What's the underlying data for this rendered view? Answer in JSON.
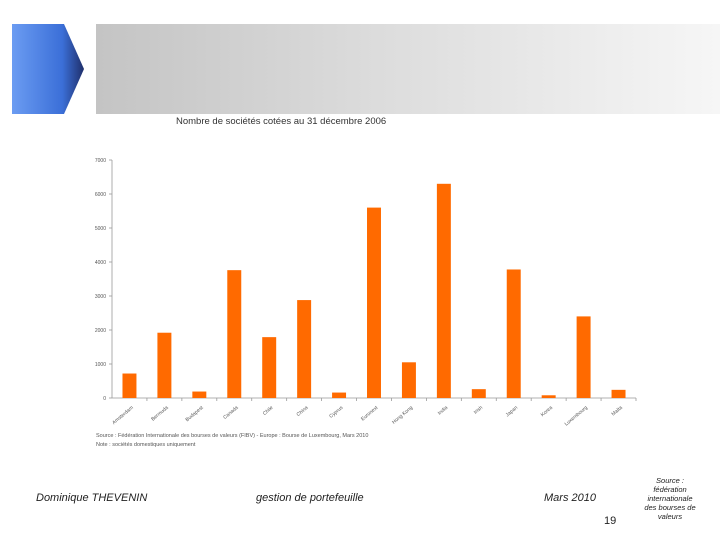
{
  "header": {
    "accent_color": "#3b6fd8",
    "band_color": "#d4d4d4"
  },
  "chart_data": {
    "type": "bar",
    "title": "Nombre de sociétés cotées au 31 décembre 2006",
    "categories": [
      "Amsterdam",
      "Bermuda",
      "Budapest",
      "Canada",
      "Chile",
      "China",
      "Cyprus",
      "Euronext",
      "Hong Kong",
      "India",
      "Irish",
      "Japan",
      "Korea",
      "Luxembourg",
      "Malta"
    ],
    "values": [
      720,
      1920,
      190,
      3760,
      1790,
      2880,
      160,
      5600,
      1050,
      6300,
      260,
      3780,
      80,
      2400,
      240
    ],
    "ylim": [
      0,
      7000
    ],
    "yticks": [
      0,
      1000,
      2000,
      3000,
      4000,
      5000,
      6000,
      7000
    ],
    "ytick_labels": [
      "0",
      "1000",
      "2000",
      "3000",
      "4000",
      "5000",
      "6000",
      "7000"
    ],
    "bar_color": "#ff6a00",
    "grid": false,
    "legend": "none"
  },
  "notes": {
    "source_line": "Source : Fédération Internationale des bourses de valeurs (FIBV) - Europe : Bourse de Luxembourg, Mars 2010",
    "note_line": "Note : sociétés domestiques uniquement"
  },
  "footer": {
    "author": "Dominique THEVENIN",
    "course": "gestion de portefeuille",
    "date": "Mars 2010",
    "page": "19"
  },
  "source_box": "Source : fédération internationale des bourses de valeurs"
}
